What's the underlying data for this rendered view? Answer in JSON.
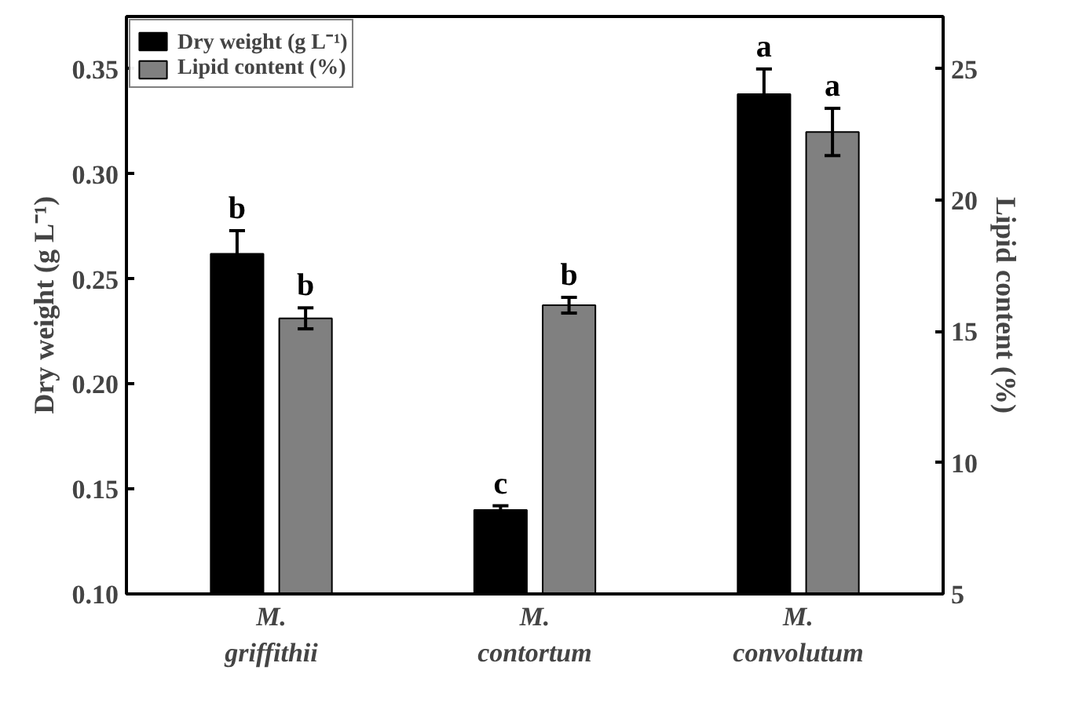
{
  "chart_data": {
    "type": "bar",
    "categories": [
      "M. griffithii",
      "M. contortum",
      "M. convolutum"
    ],
    "ylabel": "Dry weight (g L⁻¹)",
    "y2label": "Lipid content (%)",
    "ylim": [
      0.1,
      0.375
    ],
    "yticks": [
      {
        "value": 0.1,
        "label": "0.10"
      },
      0.15,
      {
        "value": 0.2,
        "label": "0.20"
      },
      0.25,
      {
        "value": 0.3,
        "label": "0.30"
      },
      0.35
    ],
    "y2lim": [
      5,
      27
    ],
    "y2ticks": [
      5,
      10,
      15,
      20,
      25
    ],
    "series": [
      {
        "name": "Dry weight (g L⁻¹)",
        "color": "#000000",
        "values": [
          0.262,
          0.14,
          0.338
        ],
        "errors": [
          0.011,
          0.002,
          0.012
        ]
      },
      {
        "name": "Lipid content (%)",
        "color": "#808080",
        "values": [
          15.5,
          16.0,
          22.6
        ],
        "errors": [
          0.4,
          0.3,
          0.9
        ],
        "axis": "y2"
      }
    ],
    "annotations": [
      "b",
      "b",
      "c",
      "b",
      "a",
      "a"
    ],
    "legend": "top left",
    "grid": false
  }
}
